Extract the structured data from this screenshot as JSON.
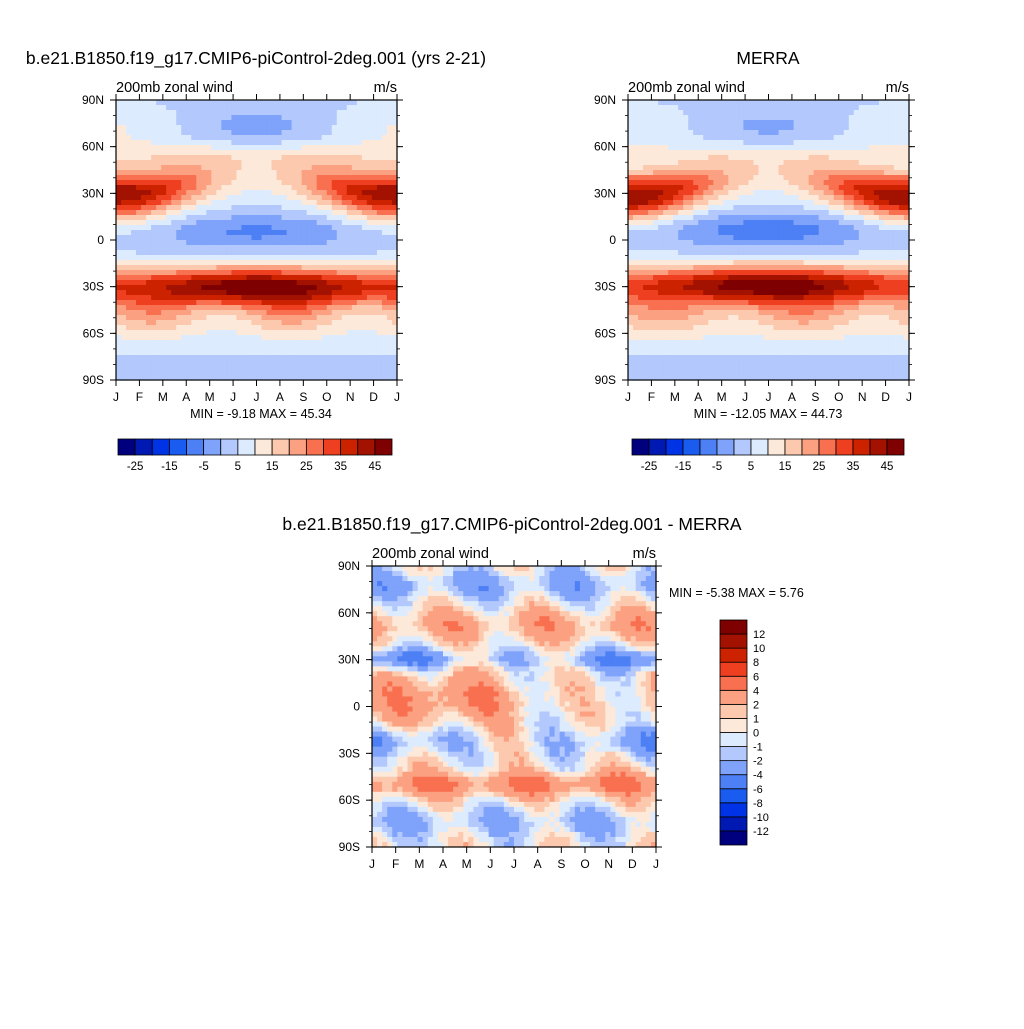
{
  "chart_data": [
    {
      "type": "heatmap",
      "title": "b.e21.B1850.f19_g17.CMIP6-piControl-2deg.001 (yrs 2-21)",
      "left_label": "200mb zonal wind",
      "right_label": "m/s",
      "x_ticks": [
        "J",
        "F",
        "M",
        "A",
        "M",
        "J",
        "J",
        "A",
        "S",
        "O",
        "N",
        "D",
        "J"
      ],
      "y_ticks": [
        "90N",
        "60N",
        "30N",
        "0",
        "30S",
        "60S",
        "90S"
      ],
      "ylim": [
        -90,
        90
      ],
      "stats": "MIN =  -9.18 MAX =  45.34",
      "colorbar": {
        "orientation": "horizontal",
        "labels": [
          "-25",
          "-15",
          "-5",
          "5",
          "15",
          "25",
          "35",
          "45"
        ],
        "colors": [
          "#00007f",
          "#0019b2",
          "#0033e5",
          "#1a5cf0",
          "#4d7ff5",
          "#7fa2fa",
          "#b3c8fc",
          "#dcebfd",
          "#fde9d9",
          "#fcc9ae",
          "#fba080",
          "#f97050",
          "#ee4020",
          "#cc2200",
          "#a31200",
          "#7f0000"
        ]
      },
      "field": "model"
    },
    {
      "type": "heatmap",
      "title": "MERRA",
      "left_label": "200mb zonal wind",
      "right_label": "m/s",
      "x_ticks": [
        "J",
        "F",
        "M",
        "A",
        "M",
        "J",
        "J",
        "A",
        "S",
        "O",
        "N",
        "D",
        "J"
      ],
      "y_ticks": [
        "90N",
        "60N",
        "30N",
        "0",
        "30S",
        "60S",
        "90S"
      ],
      "ylim": [
        -90,
        90
      ],
      "stats": "MIN = -12.05 MAX =  44.73",
      "colorbar": {
        "orientation": "horizontal",
        "labels": [
          "-25",
          "-15",
          "-5",
          "5",
          "15",
          "25",
          "35",
          "45"
        ],
        "colors": [
          "#00007f",
          "#0019b2",
          "#0033e5",
          "#1a5cf0",
          "#4d7ff5",
          "#7fa2fa",
          "#b3c8fc",
          "#dcebfd",
          "#fde9d9",
          "#fcc9ae",
          "#fba080",
          "#f97050",
          "#ee4020",
          "#cc2200",
          "#a31200",
          "#7f0000"
        ]
      },
      "field": "obs"
    },
    {
      "type": "heatmap",
      "title": "b.e21.B1850.f19_g17.CMIP6-piControl-2deg.001 - MERRA",
      "left_label": "200mb zonal wind",
      "right_label": "m/s",
      "x_ticks": [
        "J",
        "F",
        "M",
        "A",
        "M",
        "J",
        "J",
        "A",
        "S",
        "O",
        "N",
        "D",
        "J"
      ],
      "y_ticks": [
        "90N",
        "60N",
        "30N",
        "0",
        "30S",
        "60S",
        "90S"
      ],
      "ylim": [
        -90,
        90
      ],
      "stats": "MIN =  -5.38 MAX =   5.76",
      "colorbar": {
        "orientation": "vertical",
        "labels": [
          "-12",
          "-10",
          "-8",
          "-6",
          "-4",
          "-2",
          "-1",
          "0",
          "1",
          "2",
          "4",
          "6",
          "8",
          "10",
          "12"
        ],
        "colors": [
          "#00007f",
          "#0019b2",
          "#0033e5",
          "#1a5cf0",
          "#4d7ff5",
          "#7fa2fa",
          "#b3c8fc",
          "#dcebfd",
          "#fde9d9",
          "#fcc9ae",
          "#fba080",
          "#f97050",
          "#ee4020",
          "#cc2200",
          "#a31200",
          "#7f0000"
        ]
      },
      "field": "diff"
    }
  ]
}
